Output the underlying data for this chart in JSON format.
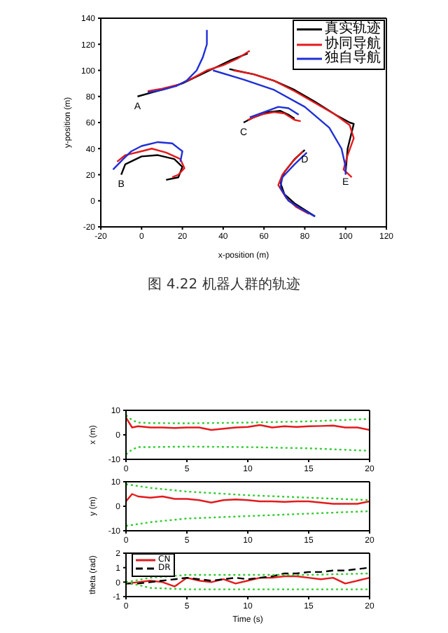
{
  "chart_data": [
    {
      "type": "line",
      "xlabel": "x-position (m)",
      "ylabel": "y-position (m)",
      "xlim": [
        -20,
        120
      ],
      "xticks": [
        -20,
        0,
        20,
        40,
        60,
        80,
        100,
        120
      ],
      "ylim": [
        -20,
        140
      ],
      "yticks": [
        -20,
        0,
        20,
        40,
        60,
        80,
        100,
        120,
        140
      ],
      "grid": false,
      "legend": "top right",
      "series": [
        {
          "name": "真实轨迹",
          "color": "#000000",
          "x": [
            -2,
            5,
            12,
            20,
            28,
            36,
            44,
            52,
            null,
            43,
            55,
            65,
            75,
            85,
            95,
            102,
            104,
            101,
            100,
            null,
            50,
            55,
            62,
            68,
            72,
            75,
            null,
            -10,
            -8,
            0,
            8,
            16,
            20,
            18,
            12,
            null,
            80,
            75,
            70,
            68,
            70,
            75,
            80,
            85
          ],
          "values": [
            80,
            83,
            86,
            90,
            96,
            102,
            108,
            113,
            null,
            101,
            97,
            92,
            85,
            76,
            66,
            60,
            59,
            40,
            22,
            null,
            60,
            64,
            68,
            69,
            66,
            63,
            null,
            20,
            28,
            34,
            35,
            32,
            26,
            18,
            16,
            null,
            39,
            32,
            22,
            14,
            5,
            -2,
            -7,
            -12
          ]
        },
        {
          "name": "协同导航",
          "color": "#e41a1c",
          "x": [
            3,
            10,
            18,
            25,
            32,
            40,
            47,
            53,
            null,
            45,
            55,
            65,
            75,
            85,
            95,
            102,
            104,
            101,
            99,
            103,
            null,
            52,
            58,
            65,
            70,
            75,
            78,
            null,
            -12,
            -8,
            0,
            5,
            12,
            19,
            21,
            18,
            15,
            null,
            79,
            74,
            69,
            67,
            71,
            76,
            82
          ],
          "values": [
            84,
            86,
            89,
            94,
            100,
            104,
            109,
            115,
            null,
            100,
            97,
            92,
            84,
            75,
            66,
            58,
            48,
            35,
            24,
            18,
            null,
            62,
            66,
            68,
            67,
            62,
            61,
            null,
            30,
            35,
            38,
            40,
            37,
            32,
            25,
            20,
            18,
            null,
            38,
            30,
            20,
            12,
            2,
            -5,
            -10
          ]
        },
        {
          "name": "独自导航",
          "color": "#1f2fd6",
          "x": [
            3,
            10,
            17,
            22,
            27,
            30,
            32,
            32,
            null,
            35,
            50,
            65,
            80,
            92,
            98,
            100,
            100,
            null,
            53,
            60,
            67,
            72,
            77,
            null,
            -14,
            -9,
            -5,
            0,
            8,
            15,
            20,
            19,
            null,
            81,
            75,
            69,
            68,
            72,
            78,
            85
          ],
          "values": [
            83,
            85,
            88,
            92,
            100,
            110,
            120,
            131,
            null,
            100,
            93,
            85,
            72,
            56,
            40,
            26,
            20,
            null,
            64,
            68,
            72,
            71,
            66,
            null,
            24,
            32,
            38,
            42,
            45,
            44,
            38,
            30,
            null,
            37,
            28,
            18,
            10,
            0,
            -6,
            -12
          ]
        }
      ],
      "annotations": [
        {
          "text": "A",
          "x": -2,
          "y": 80
        },
        {
          "text": "B",
          "x": -10,
          "y": 20
        },
        {
          "text": "C",
          "x": 50,
          "y": 60
        },
        {
          "text": "D",
          "x": 80,
          "y": 39
        },
        {
          "text": "E",
          "x": 100,
          "y": 22
        },
        "图 4.22  机器人群的轨迹"
      ]
    },
    {
      "type": "line",
      "ylabel": "x (m)",
      "xlim": [
        0,
        20
      ],
      "xticks": [
        0,
        5,
        10,
        15,
        20
      ],
      "ylim": [
        -10,
        10
      ],
      "yticks": [
        -10,
        0,
        10
      ],
      "grid": false,
      "series": [
        {
          "color": "#e41a1c",
          "x": [
            0,
            0.5,
            1,
            2,
            3,
            4,
            5,
            6,
            7,
            8,
            9,
            10,
            11,
            12,
            13,
            14,
            15,
            16,
            17,
            18,
            19,
            20
          ],
          "values": [
            7,
            3,
            3.5,
            3,
            3,
            2.8,
            3,
            3,
            2,
            2.5,
            3,
            3.2,
            4,
            3,
            3.5,
            3.2,
            3.5,
            3.6,
            3.8,
            3,
            3,
            2
          ]
        },
        {
          "color": "#33cc33",
          "line_style": "dotted",
          "x": [
            0,
            0.5,
            1,
            2,
            5,
            10,
            15,
            20
          ],
          "values": [
            8,
            6,
            5,
            4.8,
            4.7,
            5,
            5.5,
            6.5
          ]
        },
        {
          "color": "#33cc33",
          "line_style": "dotted",
          "x": [
            0,
            0.5,
            1,
            2,
            5,
            10,
            15,
            20
          ],
          "values": [
            -8,
            -6,
            -5,
            -5,
            -4.8,
            -5,
            -5.5,
            -6.5
          ]
        }
      ]
    },
    {
      "type": "line",
      "ylabel": "y (m)",
      "xlim": [
        0,
        20
      ],
      "xticks": [
        0,
        5,
        10,
        15,
        20
      ],
      "ylim": [
        -10,
        10
      ],
      "yticks": [
        -10,
        0,
        10
      ],
      "grid": false,
      "series": [
        {
          "color": "#e41a1c",
          "x": [
            0,
            0.5,
            1,
            2,
            3,
            4,
            5,
            6,
            7,
            8,
            9,
            10,
            11,
            12,
            13,
            14,
            15,
            16,
            17,
            18,
            19,
            20
          ],
          "values": [
            2,
            5,
            4,
            3.5,
            4,
            3,
            3,
            2.5,
            1.5,
            2.5,
            2.8,
            2.5,
            2,
            2,
            1.8,
            2,
            2,
            1.5,
            1,
            1,
            1,
            2
          ]
        },
        {
          "color": "#33cc33",
          "line_style": "dotted",
          "x": [
            0,
            2,
            5,
            10,
            15,
            20
          ],
          "values": [
            9,
            7.5,
            6,
            4.5,
            3.5,
            2.5
          ]
        },
        {
          "color": "#33cc33",
          "line_style": "dotted",
          "x": [
            0,
            2,
            5,
            10,
            15,
            20
          ],
          "values": [
            -8,
            -6.5,
            -5,
            -4,
            -3,
            -2
          ]
        }
      ]
    },
    {
      "type": "line",
      "xlabel": "Time (s)",
      "ylabel": "theta (rad)",
      "xlim": [
        0,
        20
      ],
      "xticks": [
        0,
        5,
        10,
        15,
        20
      ],
      "ylim": [
        -1,
        2
      ],
      "yticks": [
        -1,
        0,
        1,
        2
      ],
      "grid": false,
      "legend": "top left",
      "series": [
        {
          "name": "CN",
          "color": "#e41a1c",
          "x": [
            0,
            1,
            2,
            3,
            4,
            5,
            6,
            7,
            8,
            9,
            10,
            11,
            12,
            13,
            14,
            15,
            16,
            17,
            18,
            19,
            20
          ],
          "values": [
            -0.1,
            0,
            0.1,
            0,
            -0.3,
            0.3,
            0.1,
            0,
            0.2,
            -0.1,
            0.1,
            0.3,
            0.3,
            0.4,
            0.4,
            0.3,
            0.2,
            0.3,
            -0.1,
            0.1,
            0.3
          ]
        },
        {
          "name": "DR",
          "color": "#000000",
          "line_style": "dashed",
          "x": [
            0,
            1,
            2,
            3,
            4,
            5,
            6,
            7,
            8,
            9,
            10,
            11,
            12,
            13,
            14,
            15,
            16,
            17,
            18,
            19,
            20
          ],
          "values": [
            -0.1,
            -0.1,
            0,
            0.1,
            0.2,
            0.3,
            0.2,
            0.1,
            0.2,
            0.3,
            0.2,
            0.3,
            0.4,
            0.6,
            0.6,
            0.7,
            0.7,
            0.8,
            0.8,
            0.9,
            1.0
          ]
        },
        {
          "color": "#33cc33",
          "line_style": "dotted",
          "x": [
            0,
            2,
            5,
            10,
            15,
            20
          ],
          "values": [
            0,
            0.3,
            0.5,
            0.5,
            0.5,
            0.6
          ]
        },
        {
          "color": "#33cc33",
          "line_style": "dotted",
          "x": [
            0,
            2,
            5,
            10,
            15,
            20
          ],
          "values": [
            0,
            -0.4,
            -0.5,
            -0.5,
            -0.5,
            -0.5
          ]
        }
      ]
    }
  ]
}
